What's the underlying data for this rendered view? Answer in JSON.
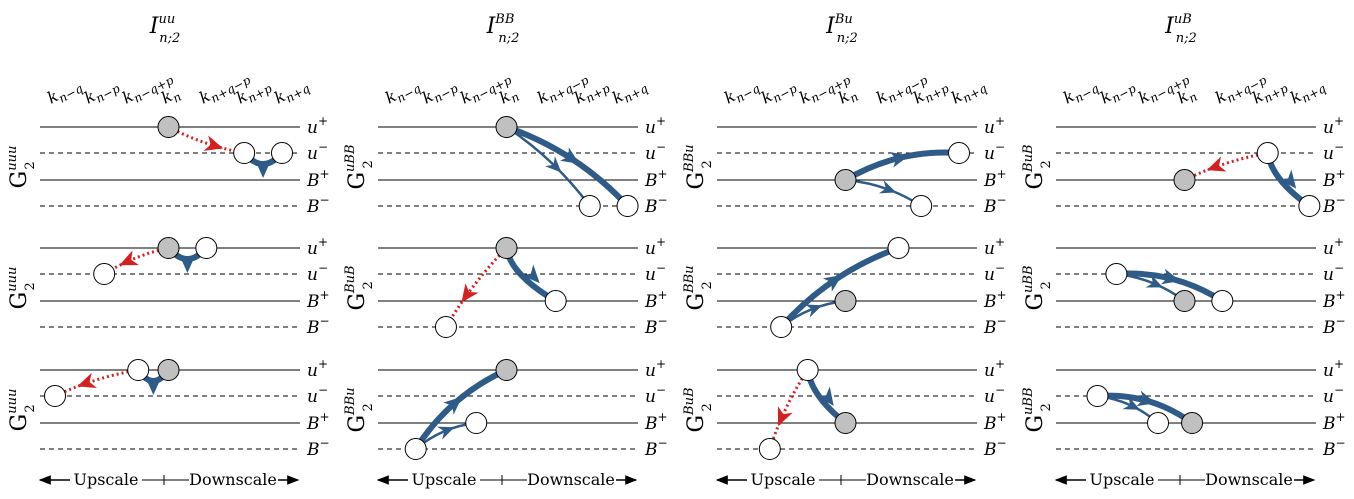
{
  "colors": {
    "line": "#000000",
    "thick_arrow": "#2e5b87",
    "dotted_arrow": "#d42020",
    "node_filled": "#c0c0c0",
    "node_empty": "#ffffff"
  },
  "k_labels": [
    "k_{n−q}",
    "k_{n−p}",
    "k_{n−q+p}",
    "k_n",
    "k_{n+q−p}",
    "k_{n+p}",
    "k_{n+q}"
  ],
  "level_labels": [
    {
      "base": "u",
      "sup": "+"
    },
    {
      "base": "u",
      "sup": "−"
    },
    {
      "base": "B",
      "sup": "+"
    },
    {
      "base": "B",
      "sup": "−"
    }
  ],
  "axis": {
    "left": "Upscale",
    "right": "Downscale"
  },
  "panels": [
    {
      "title": {
        "base": "I",
        "sup": "uu",
        "sub": "n;2"
      },
      "rows": [
        {
          "label_sup": "uuu",
          "label_sub": "2"
        },
        {
          "label_sup": "uuu",
          "label_sub": "2"
        },
        {
          "label_sup": "uuu",
          "label_sub": "2"
        }
      ]
    },
    {
      "title": {
        "base": "I",
        "sup": "BB",
        "sub": "n;2"
      },
      "rows": [
        {
          "label_sup": "uBB",
          "label_sub": "2"
        },
        {
          "label_sup": "BuB",
          "label_sub": "2"
        },
        {
          "label_sup": "BBu",
          "label_sub": "2"
        }
      ]
    },
    {
      "title": {
        "base": "I",
        "sup": "Bu",
        "sub": "n;2"
      },
      "rows": [
        {
          "label_sup": "BBu",
          "label_sub": "2"
        },
        {
          "label_sup": "BBu",
          "label_sub": "2"
        },
        {
          "label_sup": "BuB",
          "label_sub": "2"
        }
      ]
    },
    {
      "title": {
        "base": "I",
        "sup": "uB",
        "sub": "n;2"
      },
      "rows": [
        {
          "label_sup": "BuB",
          "label_sub": "2"
        },
        {
          "label_sup": "uBB",
          "label_sub": "2"
        },
        {
          "label_sup": "uBB",
          "label_sub": "2"
        }
      ]
    }
  ]
}
